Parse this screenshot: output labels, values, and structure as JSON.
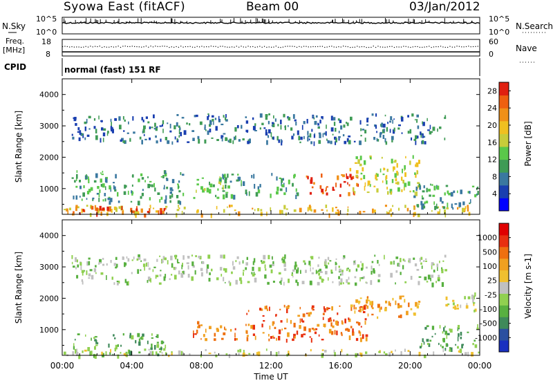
{
  "header": {
    "station": "Syowa East (fitACF)",
    "beam": "Beam 00",
    "date": "03/Jan/2012"
  },
  "noise_panel": {
    "left_label": "N.Sky",
    "left_ticks": [
      "10^5",
      "10^0"
    ],
    "right_label": "N.Search",
    "right_ticks": [
      "10^5",
      "10^0"
    ]
  },
  "freq_panel": {
    "left_label_1": "Freq.",
    "left_label_2": "[MHz]",
    "left_ticks": [
      "18",
      "8"
    ],
    "right_label": "Nave",
    "right_ticks": [
      "60",
      "0"
    ]
  },
  "cpid_panel": {
    "label": "CPID",
    "mode_text": "normal (fast) 151 RF"
  },
  "chart_data": [
    {
      "type": "heatmap",
      "title": "",
      "quantity": "Power",
      "xlabel": "",
      "ylabel": "Slant Range [km]",
      "xlim": [
        "00:00",
        "00:00"
      ],
      "ylim": [
        180,
        4500
      ],
      "yticks": [
        "1000",
        "2000",
        "3000",
        "4000"
      ],
      "colorbar": {
        "label": "Power [dB]",
        "ticks": [
          "4",
          "8",
          "12",
          "16",
          "20",
          "24",
          "28"
        ],
        "range": [
          0,
          30
        ],
        "colors": [
          "#0000ff",
          "#1a3fb0",
          "#3a78a0",
          "#3f9b55",
          "#5ac84a",
          "#c8cc3a",
          "#f0c020",
          "#f09018",
          "#ee6010",
          "#e02010"
        ]
      },
      "echo_regions": [
        {
          "t0": 0.0,
          "t1": 24.0,
          "r0": 200,
          "r1": 500,
          "level": 6
        },
        {
          "t0": 0.5,
          "t1": 6.5,
          "r0": 200,
          "r1": 450,
          "level": 9
        },
        {
          "t0": 0.5,
          "t1": 7.0,
          "r0": 600,
          "r1": 1600,
          "level": 3
        },
        {
          "t0": 7.5,
          "t1": 9.5,
          "r0": 700,
          "r1": 1400,
          "level": 4
        },
        {
          "t0": 9.0,
          "t1": 13.5,
          "r0": 800,
          "r1": 1500,
          "level": 3
        },
        {
          "t0": 14.0,
          "t1": 17.0,
          "r0": 800,
          "r1": 1500,
          "level": 8
        },
        {
          "t0": 16.5,
          "t1": 20.5,
          "r0": 900,
          "r1": 2100,
          "level": 5
        },
        {
          "t0": 20.0,
          "t1": 24.0,
          "r0": 400,
          "r1": 1200,
          "level": 3
        },
        {
          "t0": 0.5,
          "t1": 22.0,
          "r0": 2500,
          "r1": 3400,
          "level": 2
        }
      ]
    },
    {
      "type": "heatmap",
      "title": "",
      "quantity": "Velocity",
      "xlabel": "Time UT",
      "ylabel": "Slant Range [km]",
      "xlim": [
        "00:00",
        "00:00"
      ],
      "ylim": [
        180,
        4500
      ],
      "xticks": [
        "00:00",
        "04:00",
        "08:00",
        "12:00",
        "16:00",
        "20:00",
        "00:00"
      ],
      "yticks": [
        "1000",
        "2000",
        "3000",
        "4000"
      ],
      "colorbar": {
        "label": "Velocity [m s-1]",
        "ticks": [
          "1000",
          "500",
          "100",
          "25",
          "-25",
          "-100",
          "-500",
          "-1000"
        ],
        "colors": [
          "#1a30c0",
          "#2a50a0",
          "#3f8a5a",
          "#58b040",
          "#90d050",
          "#c0c0c0",
          "#f0c030",
          "#f0a020",
          "#ee7010",
          "#e83010",
          "#e00000"
        ]
      },
      "echo_regions": [
        {
          "t0": 0.5,
          "t1": 6.0,
          "r0": 200,
          "r1": 900,
          "level": 3
        },
        {
          "t0": 7.5,
          "t1": 10.0,
          "r0": 700,
          "r1": 1300,
          "level": 8
        },
        {
          "t0": 10.5,
          "t1": 17.5,
          "r0": 700,
          "r1": 1800,
          "level": 8
        },
        {
          "t0": 16.5,
          "t1": 20.5,
          "r0": 1400,
          "r1": 2100,
          "level": 7
        },
        {
          "t0": 20.5,
          "t1": 24.0,
          "r0": 400,
          "r1": 1200,
          "level": 3
        },
        {
          "t0": 0.0,
          "t1": 24.0,
          "r0": 200,
          "r1": 400,
          "level": 5
        },
        {
          "t0": 22.0,
          "t1": 24.0,
          "r0": 1600,
          "r1": 2200,
          "level": 5
        },
        {
          "t0": 0.5,
          "t1": 22.0,
          "r0": 2500,
          "r1": 3400,
          "level": 4
        }
      ]
    }
  ]
}
